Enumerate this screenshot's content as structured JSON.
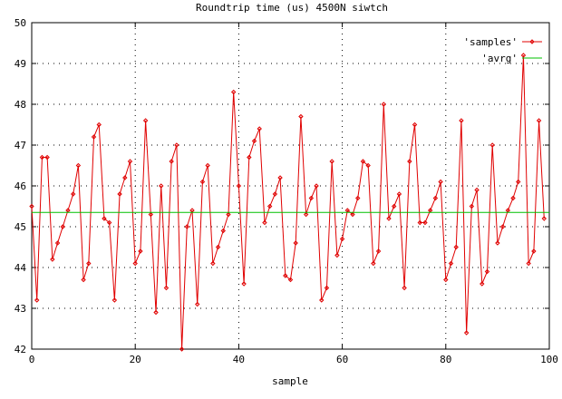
{
  "chart_data": {
    "type": "line",
    "title": "Roundtrip time (us) 4500N siwtch",
    "xlabel": "sample",
    "ylabel": "",
    "xlim": [
      0,
      100
    ],
    "ylim": [
      42,
      50
    ],
    "xticks": [
      0,
      20,
      40,
      60,
      80,
      100
    ],
    "yticks": [
      42,
      43,
      44,
      45,
      46,
      47,
      48,
      49,
      50
    ],
    "grid": true,
    "legend_position": "top-right",
    "series": [
      {
        "name": "'samples'",
        "color": "#e00000",
        "marker": "diamond",
        "x": [
          0,
          1,
          2,
          3,
          4,
          5,
          6,
          7,
          8,
          9,
          10,
          11,
          12,
          13,
          14,
          15,
          16,
          17,
          18,
          19,
          20,
          21,
          22,
          23,
          24,
          25,
          26,
          27,
          28,
          29,
          30,
          31,
          32,
          33,
          34,
          35,
          36,
          37,
          38,
          39,
          40,
          41,
          42,
          43,
          44,
          45,
          46,
          47,
          48,
          49,
          50,
          51,
          52,
          53,
          54,
          55,
          56,
          57,
          58,
          59,
          60,
          61,
          62,
          63,
          64,
          65,
          66,
          67,
          68,
          69,
          70,
          71,
          72,
          73,
          74,
          75,
          76,
          77,
          78,
          79,
          80,
          81,
          82,
          83,
          84,
          85,
          86,
          87,
          88,
          89,
          90,
          91,
          92,
          93,
          94,
          95,
          96,
          97,
          98,
          99
        ],
        "values": [
          45.5,
          43.2,
          46.7,
          46.7,
          44.2,
          44.6,
          45.0,
          45.4,
          45.8,
          46.5,
          43.7,
          44.1,
          47.2,
          47.5,
          45.2,
          45.1,
          43.2,
          45.8,
          46.2,
          46.6,
          44.1,
          44.4,
          47.6,
          45.3,
          42.9,
          46.0,
          43.5,
          46.6,
          47.0,
          42.0,
          45.0,
          45.4,
          43.1,
          46.1,
          46.5,
          44.1,
          44.5,
          44.9,
          45.3,
          48.3,
          46.0,
          43.6,
          46.7,
          47.1,
          47.4,
          45.1,
          45.5,
          45.8,
          46.2,
          43.8,
          43.7,
          44.6,
          47.7,
          45.3,
          45.7,
          46.0,
          43.2,
          43.5,
          46.6,
          44.3,
          44.7,
          45.4,
          45.3,
          45.7,
          46.6,
          46.5,
          44.1,
          44.4,
          48.0,
          45.2,
          45.5,
          45.8,
          43.5,
          46.6,
          47.5,
          45.1,
          45.1,
          45.4,
          45.7,
          46.1,
          43.7,
          44.1,
          44.5,
          47.6,
          42.4,
          45.5,
          45.9,
          43.6,
          43.9,
          47.0,
          44.6,
          45.0,
          45.4,
          45.7,
          46.1,
          49.2,
          44.1,
          44.4,
          47.6,
          45.2
        ]
      },
      {
        "name": "'avrg'",
        "color": "#00c000",
        "marker": "none",
        "x": [
          0,
          100
        ],
        "values": [
          45.35,
          45.35
        ]
      }
    ]
  }
}
